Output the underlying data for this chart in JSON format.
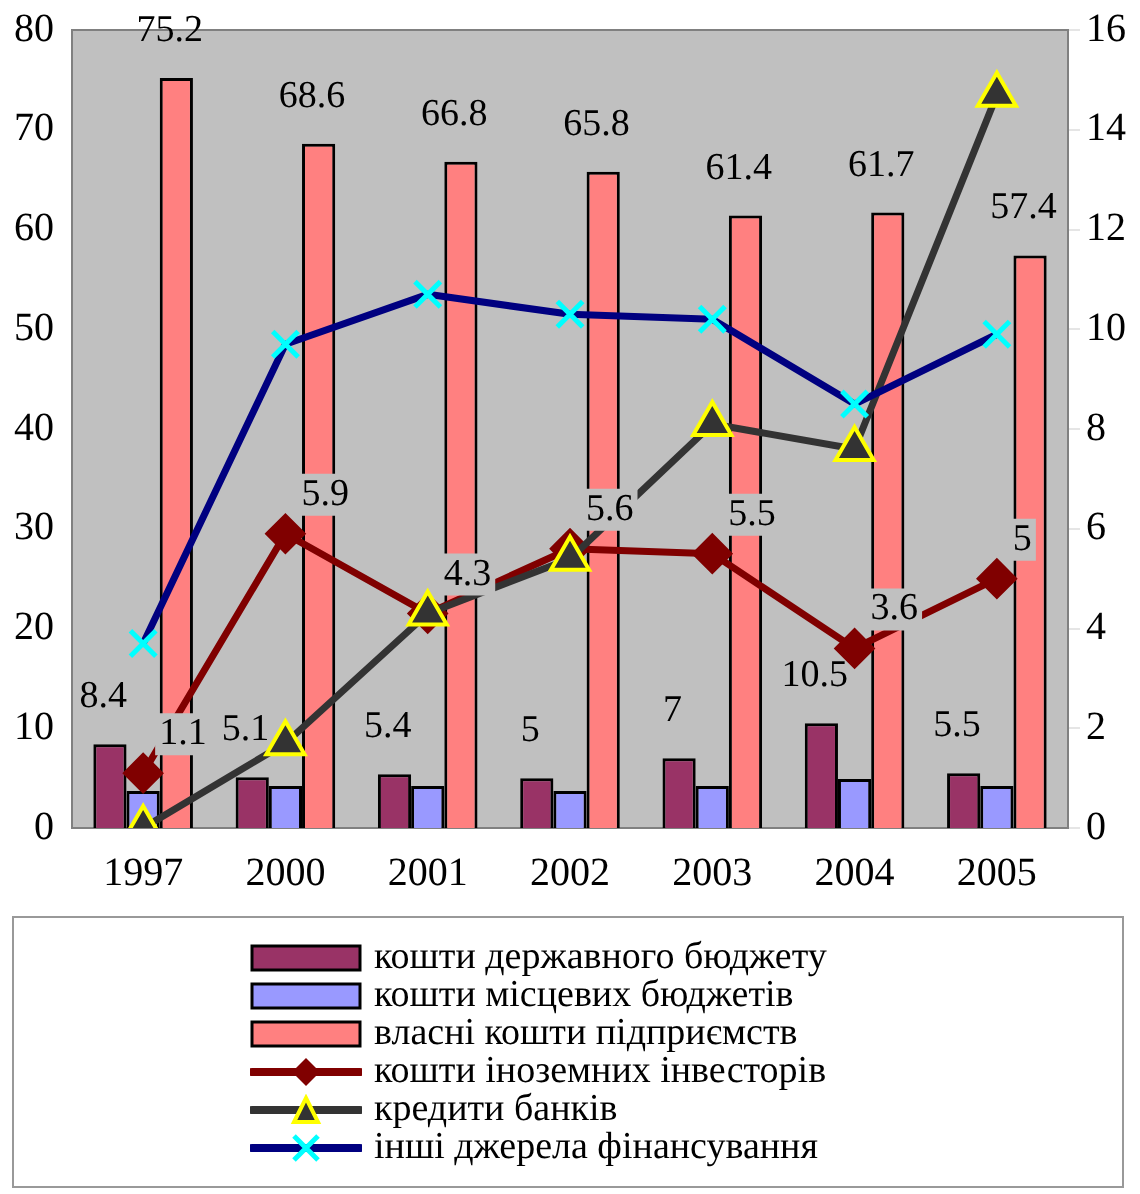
{
  "chart_data": {
    "type": "bar",
    "categories": [
      "1997",
      "2000",
      "2001",
      "2002",
      "2003",
      "2004",
      "2005"
    ],
    "ylim": [
      0,
      80
    ],
    "yticks": [
      0,
      10,
      20,
      30,
      40,
      50,
      60,
      70,
      80
    ],
    "y2lim": [
      0,
      16
    ],
    "y2ticks": [
      0,
      2,
      4,
      6,
      8,
      10,
      12,
      14,
      16
    ],
    "grid": false,
    "legend": "bottom",
    "series": [
      {
        "name": " кошти державного бюджету",
        "color": "#993366",
        "values": [
          8.4,
          5.1,
          5.4,
          5,
          7,
          10.5,
          5.5
        ],
        "value_labels": [
          "8.4",
          "5.1",
          "5.4",
          "5",
          "7",
          "10.5",
          "5.5"
        ]
      },
      {
        "name": "кошти місцевих бюджетів",
        "color": "#9999ff",
        "values": [
          3.7,
          4.2,
          4.2,
          3.7,
          4.2,
          4.9,
          4.2
        ]
      },
      {
        "name": "власні кошти підприємств",
        "color": "#ff8080",
        "values": [
          75.2,
          68.6,
          66.8,
          65.8,
          61.4,
          61.7,
          57.4
        ],
        "value_labels": [
          "75.2",
          "68.6",
          "66.8",
          "65.8",
          "61.4",
          "61.7",
          "57.4"
        ]
      },
      {
        "name": "кошти іноземних інвесторів",
        "type": "line",
        "axis": "y2",
        "marker": "diamond",
        "color": "#800000",
        "values": [
          1.1,
          5.9,
          4.3,
          5.6,
          5.5,
          3.6,
          5
        ],
        "value_labels": [
          "1.1",
          "5.9",
          "4.3",
          "5.6",
          "5.5",
          "3.6",
          "5"
        ]
      },
      {
        "name": "кредити банків",
        "type": "line",
        "axis": "y2",
        "marker": "triangle",
        "color": "#333333",
        "values": [
          0,
          1.7,
          4.3,
          5.4,
          8.1,
          7.6,
          14.7
        ]
      },
      {
        "name": "інші джерела фінансування",
        "type": "line",
        "axis": "y2",
        "marker": "cross",
        "color": "#000080",
        "values": [
          3.7,
          9.7,
          10.7,
          10.3,
          10.2,
          8.5,
          9.9
        ]
      }
    ]
  }
}
